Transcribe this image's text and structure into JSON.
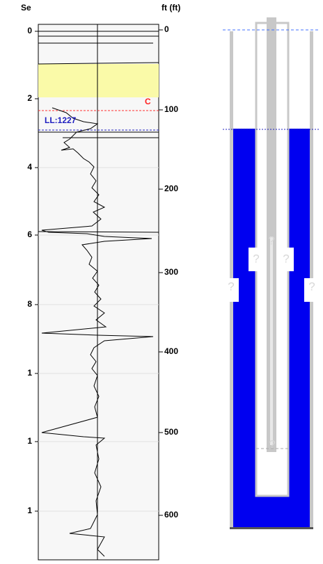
{
  "left_track": {
    "header": "Se",
    "depth_labels": [
      "0",
      "2",
      "4",
      "6",
      "8",
      "1",
      "1",
      "1"
    ]
  },
  "right_axis": {
    "header": "ft (ft)",
    "labels": [
      "0",
      "100",
      "200",
      "300",
      "400",
      "500",
      "600"
    ]
  },
  "annotations": {
    "marker": "C",
    "level": "LL:1227"
  },
  "wellbore": {
    "unknown_labels": [
      "?",
      "?",
      "?",
      "?",
      "?",
      "?"
    ]
  }
}
